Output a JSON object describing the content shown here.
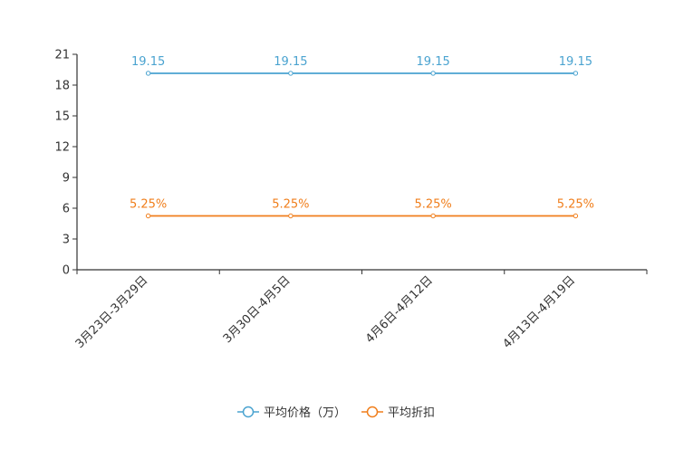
{
  "chart_data": {
    "type": "line",
    "title": "",
    "xlabel": "",
    "ylabel": "",
    "categories": [
      "3月23日-3月29日",
      "3月30日-4月5日",
      "4月6日-4月12日",
      "4月13日-4月19日"
    ],
    "ylim": [
      0,
      21
    ],
    "yticks": [
      0,
      3,
      6,
      9,
      12,
      15,
      18,
      21
    ],
    "grid": false,
    "legend_position": "bottom-center",
    "series": [
      {
        "name": "平均价格（万）",
        "values": [
          19.15,
          19.15,
          19.15,
          19.15
        ],
        "labels": [
          "19.15",
          "19.15",
          "19.15",
          "19.15"
        ],
        "color": "#4aa3d0"
      },
      {
        "name": "平均折扣",
        "values": [
          5.25,
          5.25,
          5.25,
          5.25
        ],
        "labels": [
          "5.25%",
          "5.25%",
          "5.25%",
          "5.25%"
        ],
        "color": "#f07e1b"
      }
    ]
  }
}
